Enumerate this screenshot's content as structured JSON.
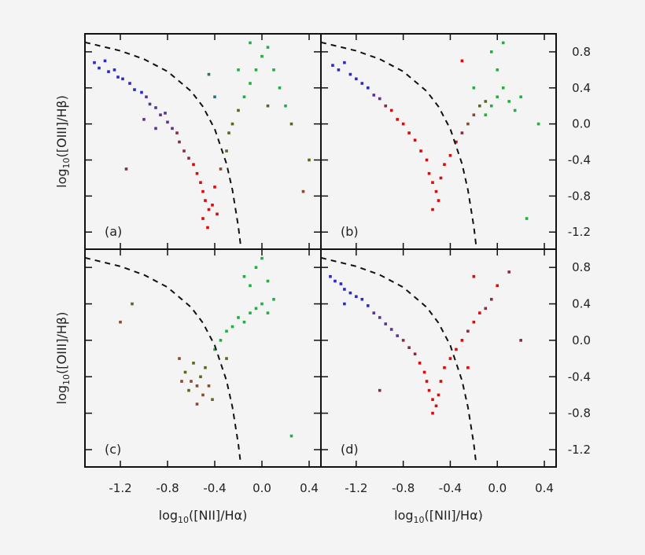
{
  "chart_data": {
    "type": "scatter",
    "layout": "2x2 panels, shared axes",
    "xlabel": {
      "base": "log",
      "sub": "10",
      "rest": "([NII]/Hα)"
    },
    "ylabel": {
      "base": "log",
      "sub": "10",
      "rest": "([OIII]/Hβ)"
    },
    "xlim": [
      -1.5,
      0.5
    ],
    "ylim": [
      -1.39,
      1.0
    ],
    "x_ticks": [
      "-1.2",
      "-0.8",
      "-0.4",
      "0.0",
      "0.4"
    ],
    "y_ticks": [
      "0.8",
      "0.4",
      "0.0",
      "-0.4",
      "-0.8",
      "-1.2"
    ],
    "y_tick_side": "right",
    "grid": false,
    "colors": {
      "blue": "#2a2ac8",
      "purple": "#5a3490",
      "maroon": "#8a2a40",
      "red": "#e00808",
      "olive": "#5e6420",
      "green": "#1fb040",
      "teal": "#2e7070",
      "brown": "#8a4a30"
    },
    "dashed_line": {
      "x": [
        -1.5,
        -1.2,
        -1.0,
        -0.8,
        -0.6,
        -0.5,
        -0.4,
        -0.3,
        -0.25,
        -0.2,
        -0.18
      ],
      "y": [
        0.906,
        0.812,
        0.719,
        0.582,
        0.362,
        0.191,
        -0.056,
        -0.443,
        -0.733,
        -1.14,
        -1.352
      ]
    },
    "panels": [
      {
        "label": "(a)",
        "points": [
          [
            -1.42,
            0.68,
            "blue"
          ],
          [
            -1.38,
            0.62,
            "blue"
          ],
          [
            -1.33,
            0.7,
            "blue"
          ],
          [
            -1.3,
            0.58,
            "blue"
          ],
          [
            -1.25,
            0.6,
            "blue"
          ],
          [
            -1.22,
            0.52,
            "blue"
          ],
          [
            -1.18,
            0.5,
            "blue"
          ],
          [
            -1.12,
            0.45,
            "blue"
          ],
          [
            -1.08,
            0.38,
            "blue"
          ],
          [
            -1.02,
            0.35,
            "blue"
          ],
          [
            -0.98,
            0.3,
            "purple"
          ],
          [
            -0.95,
            0.22,
            "purple"
          ],
          [
            -0.9,
            0.18,
            "purple"
          ],
          [
            -0.86,
            0.1,
            "purple"
          ],
          [
            -0.82,
            0.12,
            "purple"
          ],
          [
            -0.8,
            0.02,
            "purple"
          ],
          [
            -0.76,
            -0.05,
            "purple"
          ],
          [
            -0.72,
            -0.1,
            "maroon"
          ],
          [
            -1.0,
            0.05,
            "purple"
          ],
          [
            -0.9,
            -0.05,
            "purple"
          ],
          [
            -0.7,
            -0.2,
            "maroon"
          ],
          [
            -0.66,
            -0.3,
            "maroon"
          ],
          [
            -0.62,
            -0.38,
            "maroon"
          ],
          [
            -0.58,
            -0.45,
            "red"
          ],
          [
            -0.55,
            -0.55,
            "red"
          ],
          [
            -0.52,
            -0.65,
            "red"
          ],
          [
            -0.5,
            -0.75,
            "red"
          ],
          [
            -0.48,
            -0.85,
            "red"
          ],
          [
            -0.45,
            -0.95,
            "red"
          ],
          [
            -0.5,
            -1.05,
            "red"
          ],
          [
            -0.42,
            -0.9,
            "red"
          ],
          [
            -0.4,
            -0.7,
            "red"
          ],
          [
            -0.38,
            -1.0,
            "red"
          ],
          [
            -0.46,
            -1.15,
            "red"
          ],
          [
            -0.35,
            -0.5,
            "brown"
          ],
          [
            -0.3,
            -0.3,
            "olive"
          ],
          [
            -0.28,
            -0.1,
            "olive"
          ],
          [
            -0.25,
            0.0,
            "olive"
          ],
          [
            -0.2,
            0.15,
            "olive"
          ],
          [
            -0.15,
            0.3,
            "green"
          ],
          [
            -0.1,
            0.45,
            "green"
          ],
          [
            -0.05,
            0.6,
            "green"
          ],
          [
            0.0,
            0.75,
            "green"
          ],
          [
            0.05,
            0.85,
            "green"
          ],
          [
            -0.1,
            0.9,
            "green"
          ],
          [
            0.1,
            0.6,
            "green"
          ],
          [
            0.15,
            0.4,
            "green"
          ],
          [
            0.2,
            0.2,
            "green"
          ],
          [
            0.25,
            0.0,
            "olive"
          ],
          [
            0.05,
            0.2,
            "olive"
          ],
          [
            -0.4,
            0.3,
            "teal"
          ],
          [
            -0.45,
            0.55,
            "teal"
          ],
          [
            -0.2,
            0.6,
            "green"
          ],
          [
            -1.15,
            -0.5,
            "maroon"
          ],
          [
            0.4,
            -0.4,
            "olive"
          ],
          [
            0.35,
            -0.75,
            "brown"
          ]
        ]
      },
      {
        "label": "(b)",
        "points": [
          [
            -1.4,
            0.65,
            "blue"
          ],
          [
            -1.35,
            0.6,
            "blue"
          ],
          [
            -1.3,
            0.68,
            "blue"
          ],
          [
            -1.25,
            0.55,
            "blue"
          ],
          [
            -1.2,
            0.5,
            "blue"
          ],
          [
            -1.15,
            0.45,
            "blue"
          ],
          [
            -1.1,
            0.4,
            "blue"
          ],
          [
            -1.05,
            0.32,
            "purple"
          ],
          [
            -1.0,
            0.28,
            "purple"
          ],
          [
            -0.95,
            0.2,
            "maroon"
          ],
          [
            -0.9,
            0.15,
            "red"
          ],
          [
            -0.85,
            0.05,
            "red"
          ],
          [
            -0.8,
            0.0,
            "red"
          ],
          [
            -0.75,
            -0.1,
            "red"
          ],
          [
            -0.7,
            -0.18,
            "red"
          ],
          [
            -0.65,
            -0.3,
            "red"
          ],
          [
            -0.6,
            -0.4,
            "red"
          ],
          [
            -0.58,
            -0.55,
            "red"
          ],
          [
            -0.55,
            -0.65,
            "red"
          ],
          [
            -0.52,
            -0.75,
            "red"
          ],
          [
            -0.5,
            -0.85,
            "red"
          ],
          [
            -0.48,
            -0.6,
            "red"
          ],
          [
            -0.45,
            -0.45,
            "red"
          ],
          [
            -0.55,
            -0.95,
            "red"
          ],
          [
            -0.4,
            -0.35,
            "red"
          ],
          [
            -0.35,
            -0.2,
            "red"
          ],
          [
            -0.3,
            -0.1,
            "maroon"
          ],
          [
            -0.25,
            0.0,
            "brown"
          ],
          [
            -0.2,
            0.1,
            "brown"
          ],
          [
            -0.15,
            0.2,
            "olive"
          ],
          [
            -0.1,
            0.25,
            "olive"
          ],
          [
            -0.05,
            0.2,
            "green"
          ],
          [
            -0.1,
            0.1,
            "green"
          ],
          [
            0.0,
            0.3,
            "green"
          ],
          [
            0.05,
            0.4,
            "green"
          ],
          [
            0.1,
            0.25,
            "green"
          ],
          [
            0.15,
            0.15,
            "green"
          ],
          [
            0.0,
            0.6,
            "green"
          ],
          [
            -0.05,
            0.8,
            "green"
          ],
          [
            0.05,
            0.9,
            "green"
          ],
          [
            0.2,
            0.3,
            "green"
          ],
          [
            -0.2,
            0.4,
            "green"
          ],
          [
            0.35,
            0.0,
            "green"
          ],
          [
            0.25,
            -1.05,
            "green"
          ],
          [
            -0.3,
            0.7,
            "red"
          ]
        ]
      },
      {
        "label": "(c)",
        "points": [
          [
            -1.1,
            0.4,
            "olive"
          ],
          [
            -1.2,
            0.2,
            "brown"
          ],
          [
            -0.7,
            -0.2,
            "brown"
          ],
          [
            -0.65,
            -0.35,
            "olive"
          ],
          [
            -0.6,
            -0.45,
            "brown"
          ],
          [
            -0.58,
            -0.25,
            "olive"
          ],
          [
            -0.55,
            -0.5,
            "brown"
          ],
          [
            -0.52,
            -0.4,
            "olive"
          ],
          [
            -0.5,
            -0.6,
            "brown"
          ],
          [
            -0.48,
            -0.3,
            "olive"
          ],
          [
            -0.45,
            -0.5,
            "brown"
          ],
          [
            -0.62,
            -0.55,
            "olive"
          ],
          [
            -0.55,
            -0.7,
            "brown"
          ],
          [
            -0.42,
            -0.65,
            "olive"
          ],
          [
            -0.68,
            -0.45,
            "brown"
          ],
          [
            -0.4,
            -0.1,
            "green"
          ],
          [
            -0.35,
            0.0,
            "green"
          ],
          [
            -0.3,
            0.1,
            "green"
          ],
          [
            -0.25,
            0.15,
            "green"
          ],
          [
            -0.2,
            0.25,
            "green"
          ],
          [
            -0.15,
            0.2,
            "green"
          ],
          [
            -0.1,
            0.3,
            "green"
          ],
          [
            -0.05,
            0.35,
            "green"
          ],
          [
            0.0,
            0.4,
            "green"
          ],
          [
            0.05,
            0.3,
            "green"
          ],
          [
            0.1,
            0.45,
            "green"
          ],
          [
            -0.3,
            -0.2,
            "olive"
          ],
          [
            -0.1,
            0.6,
            "green"
          ],
          [
            -0.05,
            0.8,
            "green"
          ],
          [
            0.0,
            0.9,
            "green"
          ],
          [
            -0.15,
            0.7,
            "green"
          ],
          [
            0.05,
            0.65,
            "green"
          ],
          [
            0.25,
            -1.05,
            "green"
          ]
        ]
      },
      {
        "label": "(d)",
        "points": [
          [
            -1.42,
            0.7,
            "blue"
          ],
          [
            -1.38,
            0.65,
            "blue"
          ],
          [
            -1.33,
            0.62,
            "blue"
          ],
          [
            -1.3,
            0.56,
            "blue"
          ],
          [
            -1.25,
            0.52,
            "blue"
          ],
          [
            -1.2,
            0.48,
            "blue"
          ],
          [
            -1.15,
            0.45,
            "blue"
          ],
          [
            -1.1,
            0.38,
            "blue"
          ],
          [
            -1.3,
            0.4,
            "blue"
          ],
          [
            -1.05,
            0.3,
            "purple"
          ],
          [
            -1.0,
            0.25,
            "purple"
          ],
          [
            -0.95,
            0.18,
            "purple"
          ],
          [
            -0.9,
            0.12,
            "purple"
          ],
          [
            -0.85,
            0.05,
            "purple"
          ],
          [
            -0.8,
            0.0,
            "maroon"
          ],
          [
            -0.75,
            -0.08,
            "maroon"
          ],
          [
            -0.7,
            -0.15,
            "maroon"
          ],
          [
            -0.66,
            -0.25,
            "red"
          ],
          [
            -0.62,
            -0.35,
            "red"
          ],
          [
            -0.6,
            -0.45,
            "red"
          ],
          [
            -0.58,
            -0.55,
            "red"
          ],
          [
            -0.55,
            -0.65,
            "red"
          ],
          [
            -0.52,
            -0.72,
            "red"
          ],
          [
            -0.5,
            -0.6,
            "red"
          ],
          [
            -0.48,
            -0.45,
            "red"
          ],
          [
            -0.45,
            -0.3,
            "red"
          ],
          [
            -0.55,
            -0.8,
            "red"
          ],
          [
            -0.4,
            -0.2,
            "red"
          ],
          [
            -0.35,
            -0.1,
            "red"
          ],
          [
            -0.3,
            0.0,
            "red"
          ],
          [
            -0.25,
            0.1,
            "maroon"
          ],
          [
            -0.2,
            0.2,
            "red"
          ],
          [
            -0.15,
            0.3,
            "red"
          ],
          [
            -0.1,
            0.35,
            "maroon"
          ],
          [
            -0.25,
            -0.3,
            "red"
          ],
          [
            0.0,
            0.6,
            "red"
          ],
          [
            0.1,
            0.75,
            "maroon"
          ],
          [
            -0.2,
            0.7,
            "red"
          ],
          [
            -0.05,
            0.45,
            "maroon"
          ],
          [
            0.2,
            0.0,
            "maroon"
          ],
          [
            -1.0,
            -0.55,
            "maroon"
          ]
        ]
      }
    ]
  }
}
